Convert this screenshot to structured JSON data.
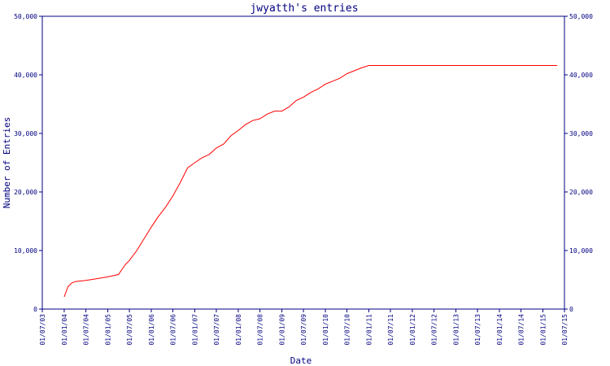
{
  "chart_data": {
    "type": "line",
    "title": "jwyatth's entries",
    "xlabel": "Date",
    "ylabel": "Number of Entries",
    "ylim": [
      0,
      50000
    ],
    "y_ticks": [
      0,
      10000,
      20000,
      30000,
      40000,
      50000
    ],
    "y_tick_labels": [
      "0",
      "10,000",
      "20,000",
      "30,000",
      "40,000",
      "50,000"
    ],
    "x_tick_labels": [
      "01/07/03",
      "01/01/04",
      "01/07/04",
      "01/01/05",
      "01/07/05",
      "01/01/06",
      "01/07/06",
      "01/01/07",
      "01/07/07",
      "01/01/08",
      "01/07/08",
      "01/01/09",
      "01/07/09",
      "01/01/10",
      "01/07/10",
      "01/01/11",
      "01/07/11",
      "01/01/12",
      "01/07/12",
      "01/01/13",
      "01/07/13",
      "01/01/14",
      "01/07/14",
      "01/01/15",
      "01/07/15"
    ],
    "x_tick_dates": [
      "2003-07-01",
      "2004-01-01",
      "2004-07-01",
      "2005-01-01",
      "2005-07-01",
      "2006-01-01",
      "2006-07-01",
      "2007-01-01",
      "2007-07-01",
      "2008-01-01",
      "2008-07-01",
      "2009-01-01",
      "2009-07-01",
      "2010-01-01",
      "2010-07-01",
      "2011-01-01",
      "2011-07-01",
      "2012-01-01",
      "2012-07-01",
      "2013-01-01",
      "2013-07-01",
      "2014-01-01",
      "2014-07-01",
      "2015-01-01",
      "2015-07-01"
    ],
    "xlim": [
      "2003-07-01",
      "2015-07-01"
    ],
    "grid": false,
    "colors": {
      "axis": "#000080",
      "series": "#ff0000"
    },
    "series": [
      {
        "values": [
          [
            "2004-01-01",
            2100
          ],
          [
            "2004-02-01",
            3800
          ],
          [
            "2004-03-01",
            4400
          ],
          [
            "2004-04-01",
            4700
          ],
          [
            "2004-07-01",
            4900
          ],
          [
            "2004-10-01",
            5200
          ],
          [
            "2005-01-01",
            5500
          ],
          [
            "2005-04-01",
            5900
          ],
          [
            "2005-05-01",
            6800
          ],
          [
            "2005-06-01",
            7700
          ],
          [
            "2005-07-01",
            8300
          ],
          [
            "2005-09-01",
            10000
          ],
          [
            "2005-11-01",
            12000
          ],
          [
            "2006-01-01",
            14000
          ],
          [
            "2006-03-01",
            15800
          ],
          [
            "2006-05-01",
            17400
          ],
          [
            "2006-07-01",
            19300
          ],
          [
            "2006-09-01",
            21600
          ],
          [
            "2006-11-01",
            24100
          ],
          [
            "2007-01-01",
            25000
          ],
          [
            "2007-03-01",
            25800
          ],
          [
            "2007-05-01",
            26400
          ],
          [
            "2007-07-01",
            27500
          ],
          [
            "2007-09-01",
            28200
          ],
          [
            "2007-11-01",
            29600
          ],
          [
            "2008-01-01",
            30500
          ],
          [
            "2008-03-01",
            31500
          ],
          [
            "2008-05-01",
            32200
          ],
          [
            "2008-07-01",
            32500
          ],
          [
            "2008-09-01",
            33300
          ],
          [
            "2008-11-01",
            33800
          ],
          [
            "2009-01-01",
            33800
          ],
          [
            "2009-03-01",
            34500
          ],
          [
            "2009-05-01",
            35600
          ],
          [
            "2009-07-01",
            36200
          ],
          [
            "2009-09-01",
            37000
          ],
          [
            "2009-11-01",
            37600
          ],
          [
            "2010-01-01",
            38400
          ],
          [
            "2010-03-01",
            38900
          ],
          [
            "2010-05-01",
            39400
          ],
          [
            "2010-07-01",
            40200
          ],
          [
            "2010-09-01",
            40700
          ],
          [
            "2010-11-01",
            41200
          ],
          [
            "2011-01-01",
            41600
          ],
          [
            "2015-05-01",
            41600
          ]
        ]
      }
    ]
  }
}
